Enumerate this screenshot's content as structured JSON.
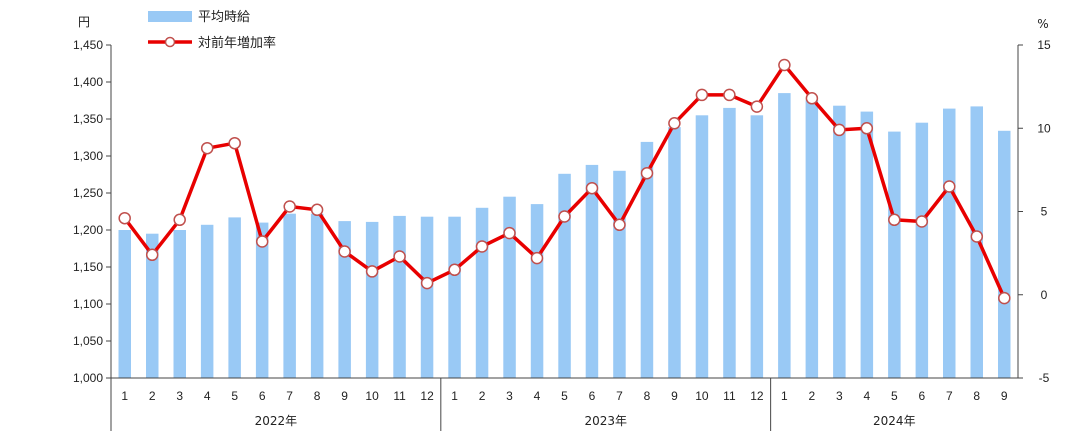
{
  "chart_data": {
    "type": "bar+line",
    "y_left_unit": "円",
    "y_right_unit": "%",
    "y_left_ticks": [
      "1,000",
      "1,050",
      "1,100",
      "1,150",
      "1,200",
      "1,250",
      "1,300",
      "1,350",
      "1,400",
      "1,450"
    ],
    "y_right_ticks": [
      "-5",
      "0",
      "5",
      "10",
      "15"
    ],
    "ylim_left": [
      1000,
      1450
    ],
    "ylim_right": [
      -5,
      15
    ],
    "categories": [
      "1",
      "2",
      "3",
      "4",
      "5",
      "6",
      "7",
      "8",
      "9",
      "10",
      "11",
      "12",
      "1",
      "2",
      "3",
      "4",
      "5",
      "6",
      "7",
      "8",
      "9",
      "10",
      "11",
      "12",
      "1",
      "2",
      "3",
      "4",
      "5",
      "6",
      "7",
      "8",
      "9"
    ],
    "years": [
      {
        "label": "2022年",
        "count": 12
      },
      {
        "label": "2023年",
        "count": 12
      },
      {
        "label": "2024年",
        "count": 9
      }
    ],
    "series": [
      {
        "name": "平均時給",
        "kind": "bar",
        "axis": "left",
        "color": "#99c9f5",
        "values": [
          1200,
          1195,
          1200,
          1207,
          1217,
          1210,
          1222,
          1222,
          1212,
          1211,
          1219,
          1218,
          1218,
          1230,
          1245,
          1235,
          1276,
          1288,
          1280,
          1319,
          1339,
          1355,
          1365,
          1355,
          1385,
          1376,
          1368,
          1360,
          1333,
          1345,
          1364,
          1367,
          1334
        ]
      },
      {
        "name": "対前年増加率",
        "kind": "line",
        "axis": "right",
        "color": "#e80000",
        "values": [
          4.6,
          2.4,
          4.5,
          8.8,
          9.1,
          3.2,
          5.3,
          5.1,
          2.6,
          1.4,
          2.3,
          0.7,
          1.5,
          2.9,
          3.7,
          2.2,
          4.7,
          6.4,
          4.2,
          7.3,
          10.3,
          12.0,
          12.0,
          11.3,
          13.8,
          11.8,
          9.9,
          10.0,
          4.5,
          4.4,
          6.5,
          3.5,
          -0.2
        ]
      }
    ],
    "legend_position": "top-left",
    "grid": false
  }
}
